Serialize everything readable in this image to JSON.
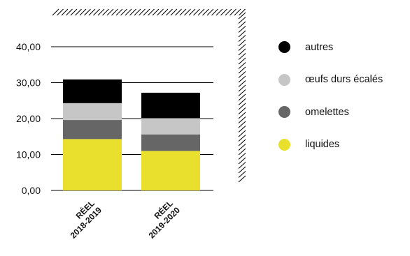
{
  "colors": {
    "autres": "#000000",
    "oeufs": "#c6c6c6",
    "omelettes": "#666666",
    "liquides": "#e8e02d",
    "axis": "#000000",
    "hatch": "#000000"
  },
  "chart_data": {
    "type": "bar",
    "stacked": true,
    "categories": [
      [
        "RÉEL",
        "2018-2019"
      ],
      [
        "RÉEL",
        "2019-2020"
      ]
    ],
    "series": [
      {
        "name": "liquides",
        "values": [
          14.3,
          11.0
        ]
      },
      {
        "name": "omelettes",
        "values": [
          5.3,
          4.6
        ]
      },
      {
        "name": "œufs durs écalés",
        "values": [
          4.7,
          4.5
        ]
      },
      {
        "name": "autres",
        "values": [
          6.6,
          7.1
        ]
      }
    ],
    "ylim": [
      0,
      40
    ],
    "yticks": [
      "0,00",
      "10,00",
      "20,00",
      "30,00",
      "40,00"
    ],
    "grid": true,
    "legend_position": "right",
    "title": "",
    "xlabel": "",
    "ylabel": ""
  },
  "legend": [
    {
      "label": "autres",
      "color": "#000000"
    },
    {
      "label": "œufs durs écalés",
      "color": "#c6c6c6"
    },
    {
      "label": "omelettes",
      "color": "#666666"
    },
    {
      "label": "liquides",
      "color": "#e8e02d"
    }
  ]
}
